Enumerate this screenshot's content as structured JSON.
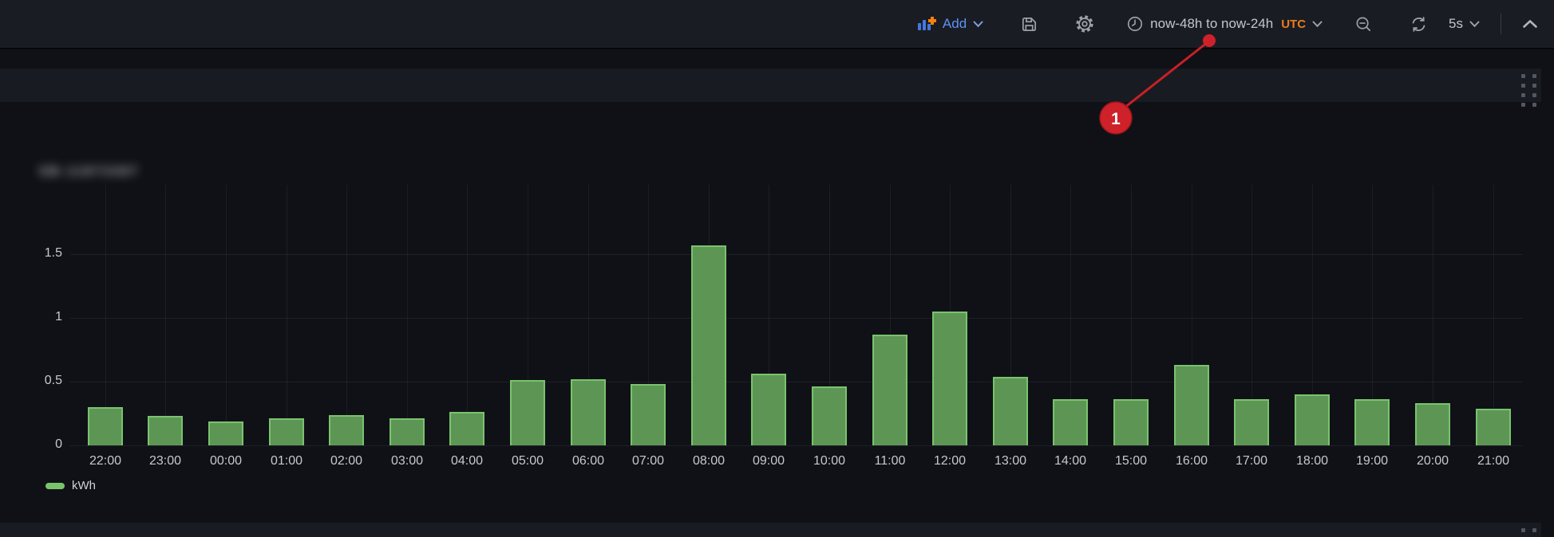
{
  "toolbar": {
    "add": {
      "label": "Add"
    },
    "time_picker": {
      "range": "now-48h to now-24h",
      "timezone": "UTC"
    },
    "refresh": {
      "interval": "5s"
    }
  },
  "panel": {
    "title": "SB-11873387",
    "title_blurred": true
  },
  "annotation": {
    "step_label": "1"
  },
  "chart_data": {
    "type": "bar",
    "title": "",
    "xlabel": "",
    "ylabel": "",
    "series_name": "kWh",
    "categories": [
      "22:00",
      "23:00",
      "00:00",
      "01:00",
      "02:00",
      "03:00",
      "04:00",
      "05:00",
      "06:00",
      "07:00",
      "08:00",
      "09:00",
      "10:00",
      "11:00",
      "12:00",
      "13:00",
      "14:00",
      "15:00",
      "16:00",
      "17:00",
      "18:00",
      "19:00",
      "20:00",
      "21:00"
    ],
    "values": [
      0.3,
      0.23,
      0.19,
      0.21,
      0.24,
      0.21,
      0.26,
      0.51,
      0.52,
      0.48,
      1.57,
      0.56,
      0.46,
      0.87,
      1.05,
      0.54,
      0.36,
      0.36,
      0.63,
      0.36,
      0.4,
      0.36,
      0.33,
      0.29
    ],
    "yticks": [
      0,
      0.5,
      1,
      1.5
    ],
    "ylim": [
      0,
      2.04
    ],
    "grid": true,
    "legend_position": "bottom-left"
  },
  "icons": {
    "add-panel-icon": "bar-chart-with-plus",
    "chevron-down-icon": "chevron-down",
    "save-icon": "floppy-disk",
    "gear-icon": "settings-gear",
    "clock-icon": "clock",
    "zoom-out-icon": "magnifier-minus",
    "refresh-icon": "circular-arrows",
    "chevron-up-icon": "chevron-up",
    "drag-handle-icon": "dot-grid"
  },
  "colors": {
    "toolbar_bg": "#1a1c23",
    "canvas_bg": "#101117",
    "strip_bg": "#181b21",
    "accent_blue": "#5d92f5",
    "accent_orange": "#ea7d1f",
    "icon_gray": "#9da0a8",
    "text_primary": "#c7c8cd",
    "bar_fill": "#5d9654",
    "bar_border": "#79c36d",
    "annotation_red": "#ce2129"
  }
}
